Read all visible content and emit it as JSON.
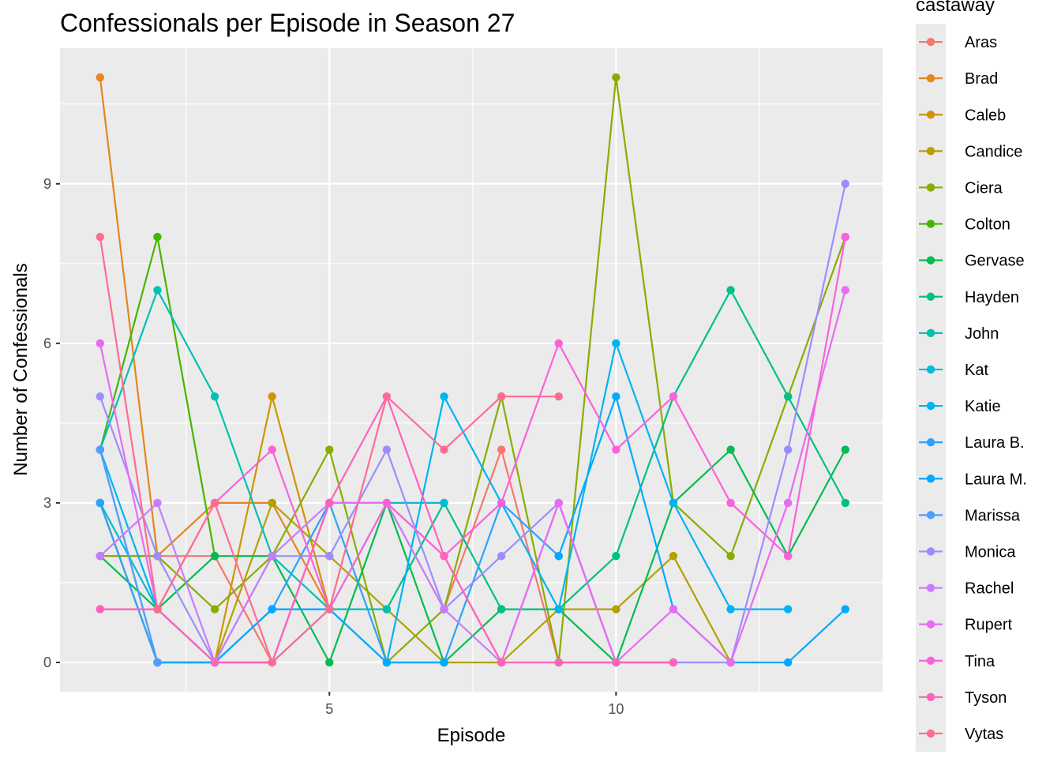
{
  "chart_data": {
    "type": "line",
    "title": "Confessionals per Episode in Season 27",
    "xlabel": "Episode",
    "ylabel": "Number of Confessionals",
    "xlim": [
      0.3,
      14.65
    ],
    "ylim": [
      -0.55,
      11.55
    ],
    "x_ticks": [
      5,
      10
    ],
    "y_ticks": [
      0,
      3,
      6,
      9
    ],
    "x_tick_labels": [
      "5",
      "10"
    ],
    "y_tick_labels": [
      "0",
      "3",
      "6",
      "9"
    ],
    "grid": true,
    "legend_position": "right",
    "legend_title": "castaway",
    "x": [
      1,
      2,
      3,
      4,
      5,
      6,
      7,
      8,
      9,
      10,
      11,
      12,
      13,
      14
    ],
    "series": [
      {
        "name": "Aras",
        "color": "#F8766D",
        "values": [
          2,
          2,
          2,
          0,
          3,
          3,
          1,
          4,
          0,
          0,
          0,
          null,
          null,
          null
        ]
      },
      {
        "name": "Brad",
        "color": "#E7851E",
        "values": [
          11,
          2,
          3,
          3,
          1,
          null,
          null,
          null,
          null,
          null,
          null,
          null,
          null,
          null
        ]
      },
      {
        "name": "Caleb",
        "color": "#D09400",
        "values": [
          3,
          0,
          0,
          5,
          1,
          null,
          null,
          null,
          null,
          null,
          null,
          null,
          null,
          null
        ]
      },
      {
        "name": "Candice",
        "color": "#B2A100",
        "values": [
          3,
          0,
          0,
          3,
          2,
          1,
          0,
          0,
          1,
          1,
          2,
          0,
          null,
          null
        ]
      },
      {
        "name": "Ciera",
        "color": "#89AC00",
        "values": [
          2,
          2,
          1,
          2,
          4,
          0,
          1,
          5,
          0,
          11,
          3,
          2,
          5,
          8
        ]
      },
      {
        "name": "Colton",
        "color": "#45B500",
        "values": [
          4,
          8,
          2,
          null,
          null,
          null,
          null,
          null,
          null,
          null,
          null,
          null,
          null,
          null
        ]
      },
      {
        "name": "Gervase",
        "color": "#00BC51",
        "values": [
          2,
          1,
          2,
          2,
          0,
          3,
          0,
          1,
          1,
          0,
          3,
          4,
          2,
          4
        ]
      },
      {
        "name": "Hayden",
        "color": "#00C087",
        "values": [
          null,
          null,
          null,
          null,
          null,
          1,
          3,
          1,
          1,
          2,
          5,
          7,
          5,
          3
        ]
      },
      {
        "name": "John",
        "color": "#00C0B2",
        "values": [
          4,
          7,
          5,
          2,
          1,
          1,
          null,
          null,
          null,
          null,
          null,
          null,
          null,
          null
        ]
      },
      {
        "name": "Kat",
        "color": "#00BCD6",
        "values": [
          3,
          1,
          0,
          1,
          1,
          3,
          3,
          null,
          null,
          null,
          null,
          null,
          null,
          null
        ]
      },
      {
        "name": "Katie",
        "color": "#00B3F2",
        "values": [
          4,
          1,
          0,
          0,
          1,
          0,
          5,
          3,
          1,
          6,
          3,
          1,
          1,
          null
        ]
      },
      {
        "name": "Laura B.",
        "color": "#29A3FF",
        "values": [
          3,
          0,
          0,
          1,
          3,
          0,
          0,
          3,
          2,
          null,
          null,
          null,
          null,
          null
        ]
      },
      {
        "name": "Laura M.",
        "color": "#00A9FF",
        "values": [
          4,
          0,
          0,
          1,
          1,
          0,
          0,
          null,
          2,
          5,
          1,
          0,
          0,
          1
        ]
      },
      {
        "name": "Marissa",
        "color": "#529EFF",
        "values": [
          4,
          0,
          null,
          null,
          null,
          null,
          null,
          null,
          null,
          null,
          null,
          null,
          null,
          null
        ]
      },
      {
        "name": "Monica",
        "color": "#9C8DFF",
        "values": [
          5,
          2,
          0,
          2,
          2,
          4,
          1,
          2,
          3,
          0,
          0,
          0,
          4,
          9
        ]
      },
      {
        "name": "Rachel",
        "color": "#C77CFF",
        "values": [
          2,
          3,
          0,
          2,
          3,
          3,
          1,
          0,
          3,
          0,
          null,
          null,
          null,
          null
        ]
      },
      {
        "name": "Rupert",
        "color": "#E76BF3",
        "values": [
          6,
          1,
          0,
          0,
          3,
          3,
          2,
          0,
          3,
          0,
          1,
          0,
          3,
          7
        ]
      },
      {
        "name": "Tina",
        "color": "#FA62DB",
        "values": [
          1,
          1,
          3,
          4,
          1,
          3,
          2,
          3,
          6,
          4,
          5,
          3,
          2,
          8
        ]
      },
      {
        "name": "Tyson",
        "color": "#FF62BC",
        "values": [
          1,
          1,
          0,
          0,
          3,
          5,
          2,
          0,
          0,
          0,
          0,
          null,
          null,
          null
        ]
      },
      {
        "name": "Vytas",
        "color": "#FF6C91",
        "values": [
          8,
          1,
          3,
          0,
          1,
          5,
          4,
          5,
          5,
          null,
          null,
          null,
          null,
          null
        ]
      }
    ]
  }
}
